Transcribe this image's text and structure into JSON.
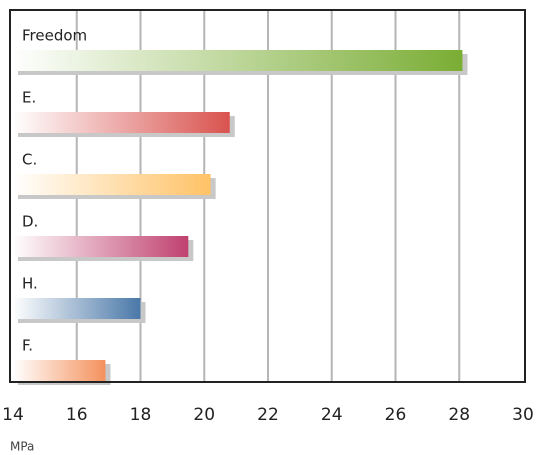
{
  "chart_data": {
    "type": "bar",
    "orientation": "horizontal",
    "x_label": "MPa",
    "categories": [
      "Freedom",
      "E.",
      "C.",
      "D.",
      "H.",
      "F."
    ],
    "values": [
      28.1,
      20.8,
      20.2,
      19.5,
      18.0,
      16.9
    ],
    "colors": [
      "#7aad34",
      "#d9534f",
      "#ffc266",
      "#c0416f",
      "#4a78a8",
      "#f4915c"
    ],
    "xlim": [
      14,
      30
    ],
    "xticks": [
      14,
      16,
      18,
      20,
      22,
      24,
      26,
      28,
      30
    ],
    "grid": true
  }
}
